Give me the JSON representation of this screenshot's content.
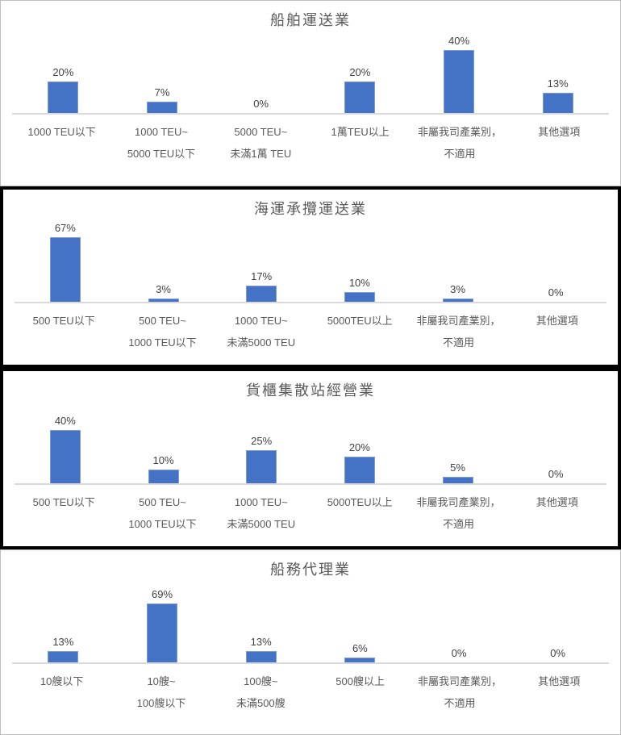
{
  "colors": {
    "bar_fill": "#4472C4",
    "bar_edge": "#7E9DD8",
    "axis_line": "#D9D9D9",
    "title_text": "#595959",
    "category_text": "#595959",
    "value_text": "#404040",
    "panel_border_light": "#BFBFBF",
    "panel_border_dark": "#000000"
  },
  "chart_data": [
    {
      "type": "bar",
      "title": "船舶運送業",
      "categories": [
        [
          "1000 TEU以下"
        ],
        [
          "1000 TEU~",
          "5000 TEU以下"
        ],
        [
          "5000 TEU~",
          "未滿1萬 TEU"
        ],
        [
          "1萬TEU以上"
        ],
        [
          "非屬我司產業別，",
          "不適用"
        ],
        [
          "其他選項"
        ]
      ],
      "values": [
        20,
        7,
        0,
        20,
        40,
        13
      ],
      "value_labels": [
        "20%",
        "7%",
        "0%",
        "20%",
        "40%",
        "13%"
      ],
      "ylabel": "",
      "xlabel": "",
      "y_axis_visible": false,
      "gridlines": false,
      "data_labels": true,
      "legend": "none"
    },
    {
      "type": "bar",
      "title": "海運承攬運送業",
      "categories": [
        [
          "500 TEU以下"
        ],
        [
          "500 TEU~",
          "1000 TEU以下"
        ],
        [
          "1000 TEU~",
          "未滿5000 TEU"
        ],
        [
          "5000TEU以上"
        ],
        [
          "非屬我司產業別，",
          "不適用"
        ],
        [
          "其他選項"
        ]
      ],
      "values": [
        67,
        3,
        17,
        10,
        3,
        0
      ],
      "value_labels": [
        "67%",
        "3%",
        "17%",
        "10%",
        "3%",
        "0%"
      ],
      "ylabel": "",
      "xlabel": "",
      "y_axis_visible": false,
      "gridlines": false,
      "data_labels": true,
      "legend": "none"
    },
    {
      "type": "bar",
      "title": "貨櫃集散站經營業",
      "categories": [
        [
          "500 TEU以下"
        ],
        [
          "500 TEU~",
          "1000 TEU以下"
        ],
        [
          "1000 TEU~",
          "未滿5000 TEU"
        ],
        [
          "5000TEU以上"
        ],
        [
          "非屬我司產業別，",
          "不適用"
        ],
        [
          "其他選項"
        ]
      ],
      "values": [
        40,
        10,
        25,
        20,
        5,
        0
      ],
      "value_labels": [
        "40%",
        "10%",
        "25%",
        "20%",
        "5%",
        "0%"
      ],
      "ylabel": "",
      "xlabel": "",
      "y_axis_visible": false,
      "gridlines": false,
      "data_labels": true,
      "legend": "none"
    },
    {
      "type": "bar",
      "title": "船務代理業",
      "categories": [
        [
          "10艘以下"
        ],
        [
          "10艘~",
          "100艘以下"
        ],
        [
          "100艘~",
          "未滿500艘"
        ],
        [
          "500艘以上"
        ],
        [
          "非屬我司產業別，",
          "不適用"
        ],
        [
          "其他選項"
        ]
      ],
      "values": [
        13,
        69,
        13,
        6,
        0,
        0
      ],
      "value_labels": [
        "13%",
        "69%",
        "13%",
        "6%",
        "0%",
        "0%"
      ],
      "ylabel": "",
      "xlabel": "",
      "y_axis_visible": false,
      "gridlines": false,
      "data_labels": true,
      "legend": "none"
    }
  ]
}
